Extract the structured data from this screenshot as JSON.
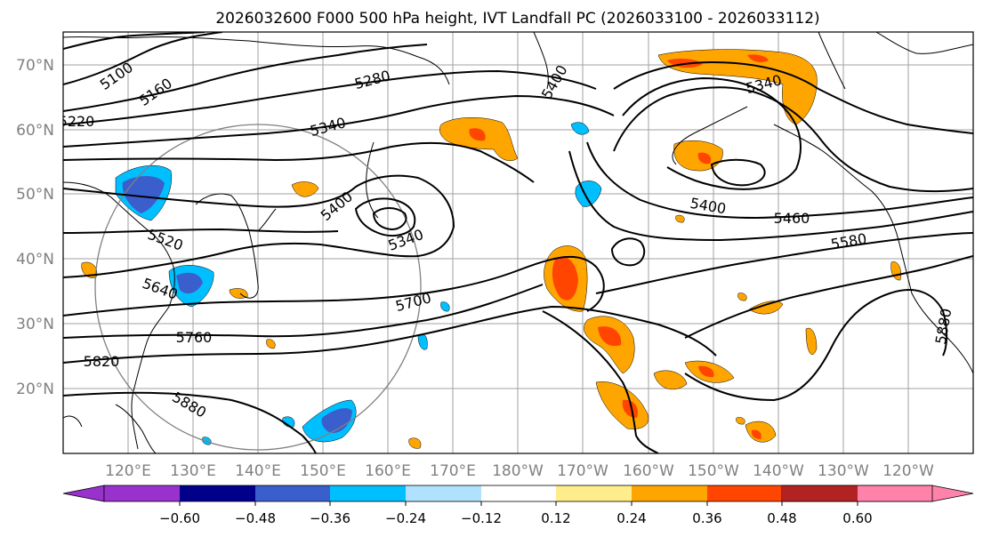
{
  "title": "2026032600 F000 500 hPa height, IVT Landfall PC (2026033100 - 2026033112)",
  "lat_labels": [
    "70°N",
    "60°N",
    "50°N",
    "40°N",
    "30°N",
    "20°N"
  ],
  "lon_labels": [
    "120°E",
    "130°E",
    "140°E",
    "150°E",
    "160°E",
    "170°E",
    "180°W",
    "170°W",
    "160°W",
    "150°W",
    "140°W",
    "130°W",
    "120°W"
  ],
  "contour_labels": [
    "5100",
    "5160",
    "5220",
    "5280",
    "5340",
    "5400",
    "5340",
    "5400",
    "5460",
    "5520",
    "5580",
    "5640",
    "5700",
    "5760",
    "5820",
    "5880",
    "5400",
    "5340",
    "5880"
  ],
  "colorbar": {
    "ticks": [
      "−0.60",
      "−0.48",
      "−0.36",
      "−0.24",
      "−0.12",
      "0.12",
      "0.24",
      "0.36",
      "0.48",
      "0.60"
    ],
    "colors": [
      "#9932cc",
      "#00008b",
      "#3a5fcd",
      "#00bfff",
      "#b0e2ff",
      "#ffffff",
      "#ffec8b",
      "#ffa500",
      "#ff4500",
      "#b22222",
      "#ff82ab"
    ]
  },
  "chart_data": {
    "type": "contour-map",
    "variable": "500 hPa height",
    "fill_variable": "IVT Landfall PC",
    "lat_range": [
      10,
      75
    ],
    "lon_range": [
      110,
      250
    ],
    "contour_levels": [
      5100,
      5160,
      5220,
      5280,
      5340,
      5400,
      5460,
      5520,
      5580,
      5640,
      5700,
      5760,
      5820,
      5880
    ],
    "colorbar_levels": [
      -0.6,
      -0.48,
      -0.36,
      -0.24,
      -0.12,
      0.12,
      0.24,
      0.36,
      0.48,
      0.6
    ]
  }
}
